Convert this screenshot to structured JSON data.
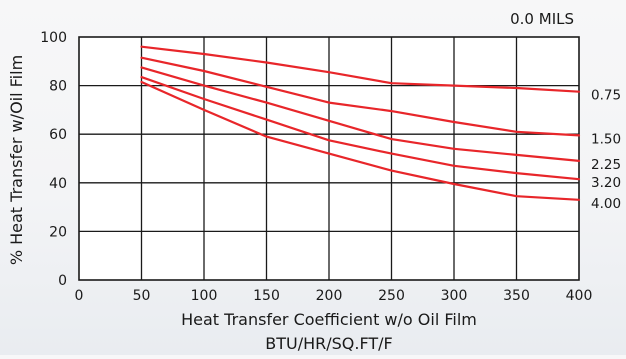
{
  "chart_data": {
    "type": "line",
    "title": "0.0 MILS",
    "xlabel": "Heat Transfer Coefficient w/o Oil Film",
    "xlabel_line2": "BTU/HR/SQ.FT/F",
    "ylabel": "% Heat Transfer w/Oil Film",
    "xlim": [
      0,
      400
    ],
    "ylim": [
      0,
      100
    ],
    "x_ticks": [
      0,
      50,
      100,
      150,
      200,
      250,
      300,
      350,
      400
    ],
    "y_ticks": [
      0,
      20,
      40,
      60,
      80,
      100
    ],
    "grid": true,
    "line_color": "#e8262a",
    "series": [
      {
        "name": "0.75",
        "x": [
          50,
          100,
          150,
          200,
          250,
          300,
          350,
          400
        ],
        "y": [
          96,
          93,
          89.5,
          85.5,
          81,
          80,
          79,
          77.5
        ]
      },
      {
        "name": "1.50",
        "x": [
          50,
          100,
          150,
          200,
          250,
          300,
          350,
          400
        ],
        "y": [
          91.5,
          86,
          79.5,
          73,
          69.5,
          65,
          61,
          59.5
        ]
      },
      {
        "name": "2.25",
        "x": [
          50,
          100,
          150,
          200,
          250,
          300,
          350,
          400
        ],
        "y": [
          87.5,
          80,
          73,
          65.5,
          58,
          54,
          51.5,
          49
        ]
      },
      {
        "name": "3.20",
        "x": [
          50,
          100,
          150,
          200,
          250,
          300,
          350,
          400
        ],
        "y": [
          83.5,
          74.5,
          66,
          57.5,
          52,
          47,
          44,
          41.5
        ]
      },
      {
        "name": "4.00",
        "x": [
          50,
          100,
          150,
          200,
          250,
          300,
          350,
          400
        ],
        "y": [
          81.5,
          70,
          59,
          52,
          45,
          39.5,
          34.5,
          33
        ]
      }
    ]
  }
}
